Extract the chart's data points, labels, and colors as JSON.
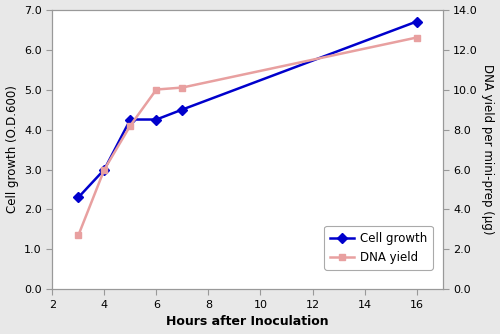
{
  "hours": [
    3,
    4,
    5,
    6,
    7,
    16
  ],
  "cell_growth": [
    2.3,
    3.0,
    4.25,
    4.25,
    4.5,
    6.7
  ],
  "dna_yield_ug": [
    2.7,
    6.0,
    8.2,
    10.0,
    10.1,
    12.6
  ],
  "cell_growth_color": "#0000cc",
  "dna_yield_color": "#e8a0a0",
  "cell_growth_label": "Cell growth",
  "dna_yield_label": "DNA yield",
  "xlabel": "Hours after Inoculation",
  "ylabel_left": "Cell growth (O.D.600)",
  "ylabel_right": "DNA yield per mini-prep (μg)",
  "xlim": [
    2,
    17
  ],
  "ylim_left": [
    0.0,
    7.0
  ],
  "ylim_right": [
    0.0,
    14.0
  ],
  "xticks": [
    2,
    4,
    6,
    8,
    10,
    12,
    14,
    16
  ],
  "yticks_left": [
    0.0,
    1.0,
    2.0,
    3.0,
    4.0,
    5.0,
    6.0,
    7.0
  ],
  "yticks_right": [
    0.0,
    2.0,
    4.0,
    6.0,
    8.0,
    10.0,
    12.0,
    14.0
  ],
  "bg_color": "#e8e8e8",
  "plot_bg_color": "#ffffff",
  "spine_color": "#999999"
}
